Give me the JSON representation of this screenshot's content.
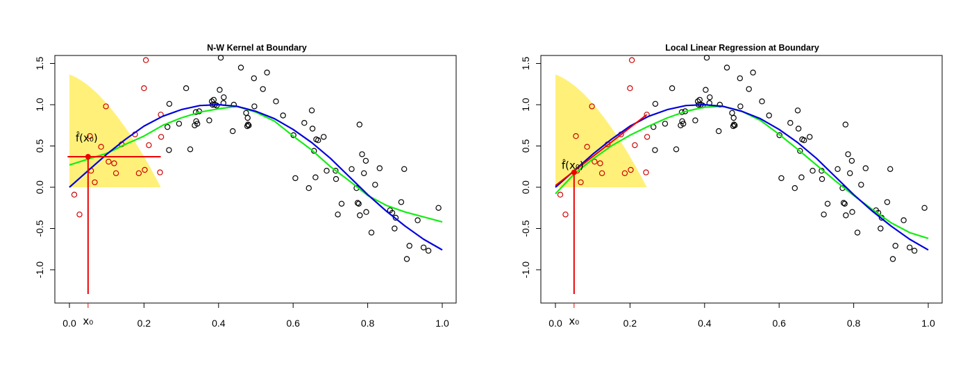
{
  "chart_data": [
    {
      "type": "scatter",
      "title": "N-W Kernel at Boundary",
      "xlabel": "",
      "ylabel": "",
      "xlim": [
        0.0,
        1.0
      ],
      "ylim": [
        -1.3,
        1.6
      ],
      "x_ticks": [
        "0.0",
        "0.2",
        "0.4",
        "0.6",
        "0.8",
        "1.0"
      ],
      "y_ticks": [
        "-1.0",
        "-0.5",
        "0.0",
        "0.5",
        "1.0",
        "1.5"
      ],
      "grid": false,
      "target_label": "x₀",
      "fit_label": "f̂(x₀)",
      "target_x": 0.05,
      "window_end": 0.245,
      "fit_value": 0.37,
      "fit_line": [
        [
          -0.005,
          0.37
        ],
        [
          0.245,
          0.37
        ]
      ],
      "colors": {
        "kernel": "#FFF07A",
        "true_curve": "#0000DD",
        "smooth": "#11EE11",
        "in_window": "#CC0000",
        "out_window": "#000000",
        "marker": "#EE0000"
      }
    },
    {
      "type": "scatter",
      "title": "Local Linear Regression at Boundary",
      "xlabel": "",
      "ylabel": "",
      "xlim": [
        0.0,
        1.0
      ],
      "ylim": [
        -1.3,
        1.6
      ],
      "x_ticks": [
        "0.0",
        "0.2",
        "0.4",
        "0.6",
        "0.8",
        "1.0"
      ],
      "y_ticks": [
        "-1.0",
        "-0.5",
        "0.0",
        "0.5",
        "1.0",
        "1.5"
      ],
      "grid": false,
      "target_label": "x₀",
      "fit_label": "f̂(x₀)",
      "target_x": 0.05,
      "window_end": 0.245,
      "fit_value": 0.18,
      "fit_line": [
        [
          0.0,
          0.02
        ],
        [
          0.245,
          0.88
        ]
      ],
      "colors": {
        "kernel": "#FFF07A",
        "true_curve": "#0000DD",
        "smooth": "#11EE11",
        "in_window": "#CC0000",
        "out_window": "#000000",
        "marker": "#EE0000"
      }
    }
  ],
  "shared": {
    "points": [
      [
        0.013,
        -0.09
      ],
      [
        0.027,
        -0.33
      ],
      [
        0.055,
        0.62
      ],
      [
        0.058,
        0.2
      ],
      [
        0.068,
        0.06
      ],
      [
        0.085,
        0.49
      ],
      [
        0.098,
        0.98
      ],
      [
        0.105,
        0.31
      ],
      [
        0.12,
        0.29
      ],
      [
        0.125,
        0.17
      ],
      [
        0.14,
        0.52
      ],
      [
        0.176,
        0.64
      ],
      [
        0.186,
        0.17
      ],
      [
        0.2,
        1.2
      ],
      [
        0.202,
        0.21
      ],
      [
        0.205,
        1.54
      ],
      [
        0.213,
        0.51
      ],
      [
        0.243,
        0.18
      ],
      [
        0.245,
        0.88
      ],
      [
        0.246,
        0.61
      ],
      [
        0.263,
        0.73
      ],
      [
        0.267,
        0.45
      ],
      [
        0.268,
        1.01
      ],
      [
        0.294,
        0.77
      ],
      [
        0.313,
        1.2
      ],
      [
        0.324,
        0.46
      ],
      [
        0.336,
        0.75
      ],
      [
        0.339,
        0.91
      ],
      [
        0.34,
        0.8
      ],
      [
        0.343,
        0.77
      ],
      [
        0.348,
        0.92
      ],
      [
        0.375,
        0.81
      ],
      [
        0.382,
        1.04
      ],
      [
        0.384,
        1.0
      ],
      [
        0.387,
        1.06
      ],
      [
        0.39,
        1.0
      ],
      [
        0.395,
        0.99
      ],
      [
        0.403,
        1.18
      ],
      [
        0.406,
        1.57
      ],
      [
        0.413,
        1.02
      ],
      [
        0.414,
        1.09
      ],
      [
        0.438,
        0.68
      ],
      [
        0.441,
        1.0
      ],
      [
        0.46,
        1.45
      ],
      [
        0.474,
        0.9
      ],
      [
        0.477,
        0.74
      ],
      [
        0.478,
        0.84
      ],
      [
        0.479,
        0.76
      ],
      [
        0.481,
        0.75
      ],
      [
        0.495,
        1.32
      ],
      [
        0.496,
        0.98
      ],
      [
        0.519,
        1.19
      ],
      [
        0.53,
        1.39
      ],
      [
        0.554,
        1.04
      ],
      [
        0.573,
        0.87
      ],
      [
        0.601,
        0.63
      ],
      [
        0.606,
        0.11
      ],
      [
        0.63,
        0.78
      ],
      [
        0.642,
        -0.01
      ],
      [
        0.65,
        0.93
      ],
      [
        0.652,
        0.71
      ],
      [
        0.656,
        0.44
      ],
      [
        0.66,
        0.12
      ],
      [
        0.662,
        0.58
      ],
      [
        0.667,
        0.57
      ],
      [
        0.682,
        0.61
      ],
      [
        0.69,
        0.2
      ],
      [
        0.714,
        0.2
      ],
      [
        0.715,
        0.1
      ],
      [
        0.72,
        -0.33
      ],
      [
        0.73,
        -0.2
      ],
      [
        0.757,
        0.22
      ],
      [
        0.77,
        -0.01
      ],
      [
        0.773,
        -0.19
      ],
      [
        0.776,
        -0.2
      ],
      [
        0.778,
        0.76
      ],
      [
        0.779,
        -0.34
      ],
      [
        0.785,
        0.4
      ],
      [
        0.79,
        0.17
      ],
      [
        0.795,
        0.32
      ],
      [
        0.796,
        -0.3
      ],
      [
        0.81,
        -0.55
      ],
      [
        0.82,
        0.03
      ],
      [
        0.832,
        0.23
      ],
      [
        0.86,
        -0.28
      ],
      [
        0.866,
        -0.31
      ],
      [
        0.872,
        -0.5
      ],
      [
        0.875,
        -0.37
      ],
      [
        0.89,
        -0.18
      ],
      [
        0.898,
        0.22
      ],
      [
        0.905,
        -0.87
      ],
      [
        0.912,
        -0.71
      ],
      [
        0.934,
        -0.4
      ],
      [
        0.95,
        -0.73
      ],
      [
        0.963,
        -0.77
      ],
      [
        0.99,
        -0.25
      ]
    ],
    "true_curve": [
      [
        0.0,
        0.0
      ],
      [
        0.05,
        0.2
      ],
      [
        0.1,
        0.4
      ],
      [
        0.15,
        0.58
      ],
      [
        0.2,
        0.74
      ],
      [
        0.25,
        0.86
      ],
      [
        0.3,
        0.94
      ],
      [
        0.35,
        0.99
      ],
      [
        0.4,
        1.0
      ],
      [
        0.45,
        0.98
      ],
      [
        0.5,
        0.92
      ],
      [
        0.55,
        0.83
      ],
      [
        0.6,
        0.7
      ],
      [
        0.65,
        0.54
      ],
      [
        0.7,
        0.35
      ],
      [
        0.75,
        0.13
      ],
      [
        0.8,
        -0.09
      ],
      [
        0.85,
        -0.29
      ],
      [
        0.9,
        -0.47
      ],
      [
        0.95,
        -0.63
      ],
      [
        1.0,
        -0.76
      ]
    ],
    "smooth_nw": [
      [
        0.0,
        0.27
      ],
      [
        0.05,
        0.34
      ],
      [
        0.1,
        0.41
      ],
      [
        0.15,
        0.52
      ],
      [
        0.2,
        0.62
      ],
      [
        0.25,
        0.75
      ],
      [
        0.3,
        0.84
      ],
      [
        0.35,
        0.91
      ],
      [
        0.4,
        0.95
      ],
      [
        0.45,
        0.98
      ],
      [
        0.5,
        0.91
      ],
      [
        0.55,
        0.8
      ],
      [
        0.6,
        0.62
      ],
      [
        0.65,
        0.45
      ],
      [
        0.7,
        0.25
      ],
      [
        0.75,
        0.08
      ],
      [
        0.8,
        -0.1
      ],
      [
        0.85,
        -0.22
      ],
      [
        0.9,
        -0.3
      ],
      [
        0.95,
        -0.36
      ],
      [
        1.0,
        -0.42
      ]
    ],
    "smooth_ll": [
      [
        0.0,
        -0.08
      ],
      [
        0.05,
        0.16
      ],
      [
        0.1,
        0.34
      ],
      [
        0.15,
        0.5
      ],
      [
        0.2,
        0.63
      ],
      [
        0.25,
        0.74
      ],
      [
        0.3,
        0.84
      ],
      [
        0.35,
        0.92
      ],
      [
        0.4,
        0.97
      ],
      [
        0.45,
        0.98
      ],
      [
        0.5,
        0.92
      ],
      [
        0.55,
        0.81
      ],
      [
        0.6,
        0.64
      ],
      [
        0.65,
        0.46
      ],
      [
        0.7,
        0.27
      ],
      [
        0.75,
        0.08
      ],
      [
        0.8,
        -0.1
      ],
      [
        0.85,
        -0.27
      ],
      [
        0.9,
        -0.43
      ],
      [
        0.95,
        -0.55
      ],
      [
        1.0,
        -0.62
      ]
    ],
    "kernel_peak": 1.4,
    "kernel_width": 0.245
  }
}
